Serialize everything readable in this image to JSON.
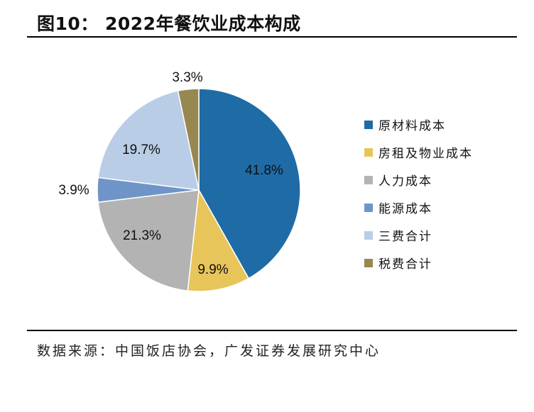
{
  "figure": {
    "title": "图10：  2022年餐饮业成本构成",
    "source": "数据来源：中国饭店协会，广发证券发展研究中心"
  },
  "chart_data": {
    "type": "pie",
    "title": "",
    "start_angle_deg": 0,
    "direction": "clockwise",
    "slices": [
      {
        "label": "原材料成本",
        "value": 41.8,
        "display": "41.8%",
        "color": "#1f6ba5"
      },
      {
        "label": "房租及物业成本",
        "value": 9.9,
        "display": "9.9%",
        "color": "#e8c55a"
      },
      {
        "label": "人力成本",
        "value": 21.3,
        "display": "21.3%",
        "color": "#b3b3b3"
      },
      {
        "label": "能源成本",
        "value": 3.9,
        "display": "3.9%",
        "color": "#6f95c8"
      },
      {
        "label": "三费合计",
        "value": 19.7,
        "display": "19.7%",
        "color": "#b9cde6"
      },
      {
        "label": "税费合计",
        "value": 3.3,
        "display": "3.3%",
        "color": "#978852"
      }
    ],
    "legend_position": "right"
  }
}
